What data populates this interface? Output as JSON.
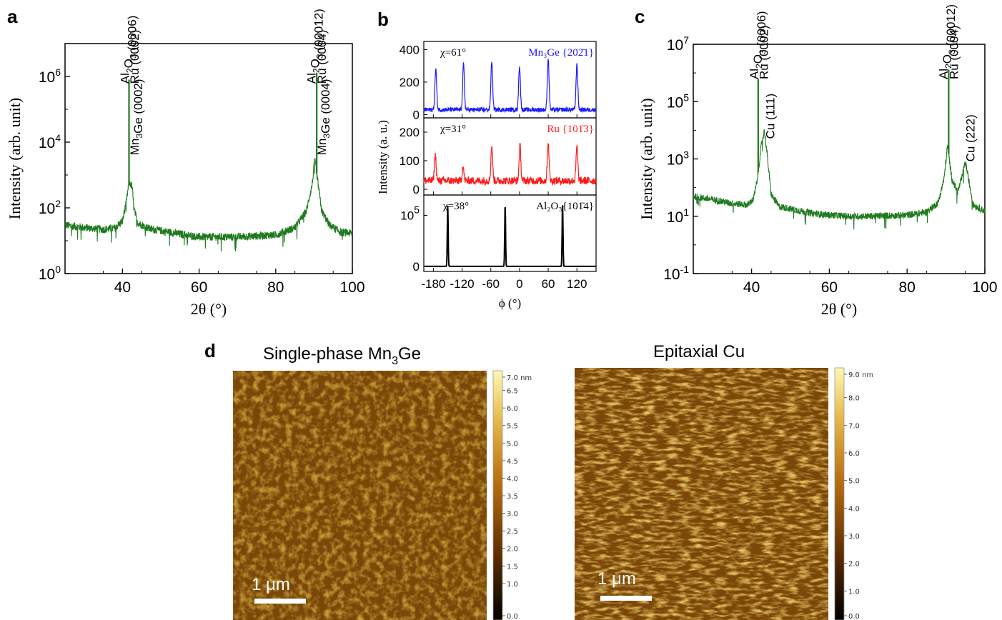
{
  "panels": {
    "a": {
      "letter": "a"
    },
    "b": {
      "letter": "b"
    },
    "c": {
      "letter": "c"
    },
    "d": {
      "letter": "d"
    }
  },
  "chart_data": [
    {
      "id": "a",
      "type": "line",
      "xlabel": "2θ (°)",
      "ylabel": "Intensity (arb. unit)",
      "xlim": [
        25,
        100
      ],
      "ylim_log10": [
        0,
        7
      ],
      "log_y": true,
      "x_ticks": [
        "40",
        "60",
        "80",
        "100"
      ],
      "y_ticks": [
        {
          "base": "10",
          "exp": "0"
        },
        {
          "base": "10",
          "exp": "2"
        },
        {
          "base": "10",
          "exp": "4"
        },
        {
          "base": "10",
          "exp": "6"
        }
      ],
      "color": "#1f7a1f",
      "baseline": [
        [
          25,
          30
        ],
        [
          30,
          25
        ],
        [
          35,
          22
        ],
        [
          38,
          24
        ],
        [
          40,
          40
        ],
        [
          41,
          150
        ],
        [
          41.7,
          600
        ],
        [
          42.5,
          450
        ],
        [
          43,
          90
        ],
        [
          44,
          35
        ],
        [
          47,
          23
        ],
        [
          55,
          16
        ],
        [
          60,
          13
        ],
        [
          70,
          13
        ],
        [
          80,
          15
        ],
        [
          85,
          25
        ],
        [
          88,
          80
        ],
        [
          89.5,
          500
        ],
        [
          90.2,
          3000
        ],
        [
          91,
          600
        ],
        [
          92,
          80
        ],
        [
          94,
          30
        ],
        [
          97,
          18
        ],
        [
          100,
          17
        ]
      ],
      "sharp_peaks": [
        {
          "x": 41.7,
          "y": 800000
        },
        {
          "x": 90.7,
          "y": 1300000
        }
      ],
      "annotations": [
        {
          "text": "Al₂O₃ (0006)",
          "x": 40.6,
          "y": 600000
        },
        {
          "text": "Ru (0002)",
          "x": 43.1,
          "y": 600000
        },
        {
          "text": "Mn₃Ge (0002)",
          "x": 43.1,
          "y": 4000
        },
        {
          "text": "Al₂O₃ (00012)",
          "x": 89.3,
          "y": 600000
        },
        {
          "text": "Ru (0004)",
          "x": 92.0,
          "y": 600000
        },
        {
          "text": "Mn₃Ge (0004)",
          "x": 92.0,
          "y": 4000
        }
      ]
    },
    {
      "id": "b",
      "type": "line",
      "xlabel": "ϕ (°)",
      "ylabel": "Intensity (a. u.)",
      "xlim": [
        -200,
        160
      ],
      "x_ticks": [
        "-180",
        "-120",
        "-60",
        "0",
        "60",
        "120"
      ],
      "subplots": [
        {
          "name": "Mn₃Ge {20-21}",
          "label": "Mn₃Ge {202̄1}",
          "chi": "χ=61°",
          "color": "#1a1aff",
          "ylim": [
            -20,
            450
          ],
          "y_ticks": [
            "0",
            "200",
            "400"
          ],
          "baseline": 30,
          "peaks": [
            {
              "x": -175,
              "y": 280
            },
            {
              "x": -117,
              "y": 310
            },
            {
              "x": -58,
              "y": 330
            },
            {
              "x": 0,
              "y": 300
            },
            {
              "x": 60,
              "y": 345
            },
            {
              "x": 120,
              "y": 315
            }
          ]
        },
        {
          "name": "Ru {10-13}",
          "label": "Ru {101̄3}",
          "chi": "χ=31°",
          "color": "#ff1a1a",
          "ylim": [
            -20,
            250
          ],
          "y_ticks": [
            "0",
            "100",
            "200"
          ],
          "baseline": 30,
          "peaks": [
            {
              "x": -176,
              "y": 120
            },
            {
              "x": -118,
              "y": 80
            },
            {
              "x": -58,
              "y": 150
            },
            {
              "x": 1,
              "y": 150
            },
            {
              "x": 60,
              "y": 165
            },
            {
              "x": 120,
              "y": 150
            }
          ]
        },
        {
          "name": "Al₂O₃ {10-14}",
          "label": "Al₂O₃{101̄4}",
          "chi": "χ=38°",
          "color": "#000000",
          "ylim": [
            -10000,
            140000
          ],
          "y_ticks": [
            {
              "base": "0",
              "exp": ""
            },
            {
              "base": "10",
              "exp": "5"
            }
          ],
          "baseline": 0,
          "peaks": [
            {
              "x": -150,
              "y": 120000
            },
            {
              "x": -30,
              "y": 120000
            },
            {
              "x": 90,
              "y": 120000
            }
          ]
        }
      ]
    },
    {
      "id": "c",
      "type": "line",
      "xlabel": "2θ (°)",
      "ylabel": "Intensity (arb. unit)",
      "xlim": [
        25,
        100
      ],
      "ylim_log10": [
        -1,
        7
      ],
      "log_y": true,
      "x_ticks": [
        "40",
        "60",
        "80",
        "100"
      ],
      "y_ticks": [
        {
          "base": "10",
          "exp": "-1"
        },
        {
          "base": "10",
          "exp": "1"
        },
        {
          "base": "10",
          "exp": "3"
        },
        {
          "base": "10",
          "exp": "5"
        },
        {
          "base": "10",
          "exp": "7"
        }
      ],
      "color": "#1f7a1f",
      "baseline": [
        [
          25,
          50
        ],
        [
          30,
          38
        ],
        [
          35,
          28
        ],
        [
          39,
          25
        ],
        [
          40.5,
          40
        ],
        [
          41.5,
          200
        ],
        [
          42.5,
          3000
        ],
        [
          43.3,
          10000
        ],
        [
          44,
          1500
        ],
        [
          45,
          60
        ],
        [
          47,
          22
        ],
        [
          55,
          13
        ],
        [
          60,
          11
        ],
        [
          65,
          10
        ],
        [
          70,
          10
        ],
        [
          80,
          11
        ],
        [
          85,
          14
        ],
        [
          88,
          30
        ],
        [
          89.5,
          200
        ],
        [
          90.4,
          3000
        ],
        [
          91.5,
          200
        ],
        [
          93,
          70
        ],
        [
          94,
          200
        ],
        [
          95,
          800
        ],
        [
          95.8,
          200
        ],
        [
          97,
          25
        ],
        [
          100,
          15
        ]
      ],
      "sharp_peaks": [
        {
          "x": 41.7,
          "y": 600000
        },
        {
          "x": 90.7,
          "y": 1300000
        }
      ],
      "annotations": [
        {
          "text": "Al₂O₃ (0006)",
          "x": 40.6,
          "y": 600000
        },
        {
          "text": "Ru (0002)",
          "x": 43.1,
          "y": 600000
        },
        {
          "text": "Cu (111)",
          "x": 44.8,
          "y": 5000
        },
        {
          "text": "Al₂O₃ (00012)",
          "x": 89.3,
          "y": 600000
        },
        {
          "text": "Ru (0004)",
          "x": 92.0,
          "y": 600000
        },
        {
          "text": "Cu (222)",
          "x": 96.2,
          "y": 800
        }
      ]
    }
  ],
  "afm": [
    {
      "title_main": "Single-phase Mn",
      "title_sub": "3",
      "title_end": "Ge",
      "scale_bar": "1 μm",
      "colorbar_ticks": [
        "7.0 nm",
        "6.5",
        "6.0",
        "5.5",
        "5.0",
        "4.5",
        "4.0",
        "3.5",
        "3.0",
        "2.5",
        "2.0",
        "1.5",
        "1.0",
        "0.0"
      ],
      "colorbar_range_nm": [
        0,
        7.0
      ]
    },
    {
      "title_main": "Epitaxial Cu",
      "title_sub": "",
      "title_end": "",
      "scale_bar": "1 μm",
      "colorbar_ticks": [
        "9.0 nm",
        "8.0",
        "7.0",
        "6.0",
        "5.0",
        "4.0",
        "3.0",
        "2.0",
        "1.0",
        "0.0"
      ],
      "colorbar_range_nm": [
        0,
        9.0
      ]
    }
  ]
}
